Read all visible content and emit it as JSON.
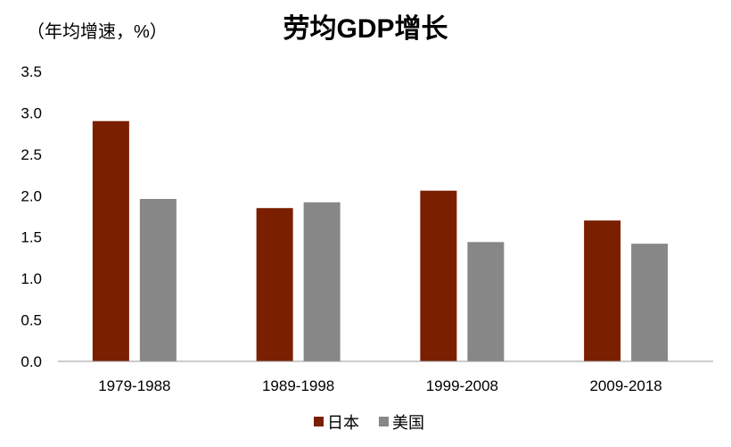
{
  "chart_data": {
    "type": "bar",
    "title": "劳均GDP增长",
    "ylabel": "（年均增速，%）",
    "xlabel": "",
    "categories": [
      "1979-1988",
      "1989-1998",
      "1999-2008",
      "2009-2018"
    ],
    "series": [
      {
        "name": "日本",
        "color": "#7A1F00",
        "values": [
          2.9,
          1.85,
          2.06,
          1.7
        ]
      },
      {
        "name": "美国",
        "color": "#878787",
        "values": [
          1.96,
          1.92,
          1.44,
          1.42
        ]
      }
    ],
    "ylim": [
      0,
      3.5
    ],
    "yticks": [
      "0.0",
      "0.5",
      "1.0",
      "1.5",
      "2.0",
      "2.5",
      "3.0",
      "3.5"
    ],
    "grid": false,
    "legend_position": "bottom"
  }
}
